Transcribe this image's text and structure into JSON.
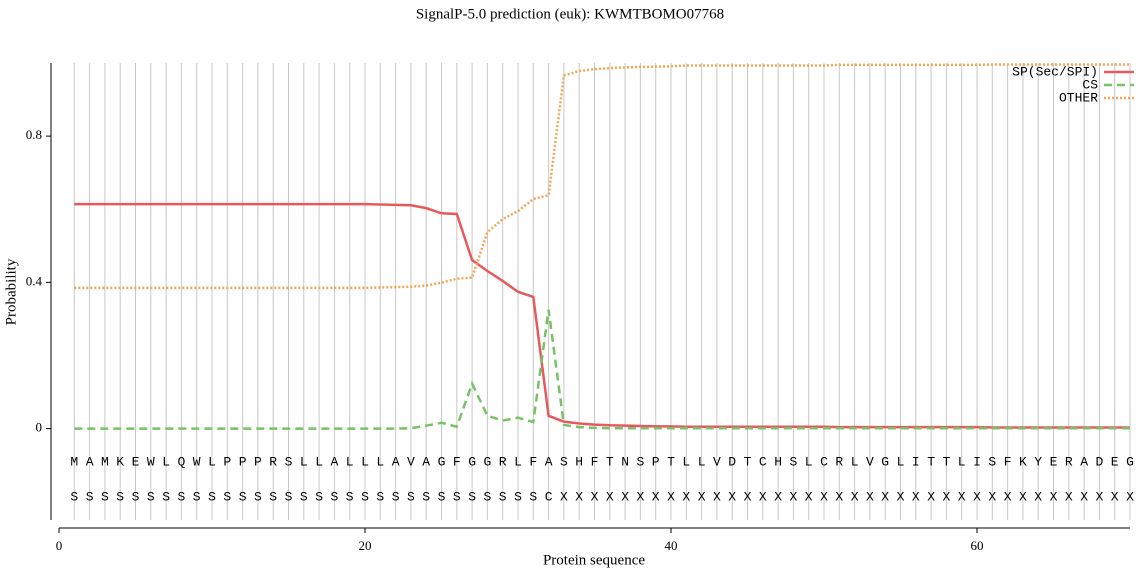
{
  "chart_data": {
    "type": "line",
    "title": "SignalP-5.0 prediction (euk):  KWMTBOMO07768",
    "x_label": "Protein sequence",
    "y_label": "Probability",
    "xlim": [
      0,
      70
    ],
    "xticks": [
      0,
      20,
      40,
      60
    ],
    "ylim": [
      -0.25,
      1.0
    ],
    "yticks": [
      0,
      0.4,
      0.8
    ],
    "grid": true,
    "legend": "upper right",
    "x": [
      1,
      2,
      3,
      4,
      5,
      6,
      7,
      8,
      9,
      10,
      11,
      12,
      13,
      14,
      15,
      16,
      17,
      18,
      19,
      20,
      21,
      22,
      23,
      24,
      25,
      26,
      27,
      28,
      29,
      30,
      31,
      32,
      33,
      34,
      35,
      36,
      37,
      38,
      39,
      40,
      41,
      42,
      43,
      44,
      45,
      46,
      47,
      48,
      49,
      50,
      51,
      52,
      53,
      54,
      55,
      56,
      57,
      58,
      59,
      60,
      61,
      62,
      63,
      64,
      65,
      66,
      67,
      68,
      69,
      70
    ],
    "sequence": [
      "M",
      "A",
      "M",
      "K",
      "E",
      "W",
      "L",
      "Q",
      "W",
      "L",
      "P",
      "P",
      "P",
      "R",
      "S",
      "L",
      "L",
      "A",
      "L",
      "L",
      "L",
      "A",
      "V",
      "A",
      "G",
      "F",
      "G",
      "G",
      "R",
      "L",
      "F",
      "A",
      "S",
      "H",
      "F",
      "T",
      "N",
      "S",
      "P",
      "T",
      "L",
      "L",
      "V",
      "D",
      "T",
      "C",
      "H",
      "S",
      "L",
      "C",
      "R",
      "L",
      "V",
      "G",
      "L",
      "I",
      "T",
      "T",
      "L",
      "I",
      "S",
      "F",
      "K",
      "Y",
      "E",
      "R",
      "A",
      "D",
      "E",
      "G"
    ],
    "labels": [
      "S",
      "S",
      "S",
      "S",
      "S",
      "S",
      "S",
      "S",
      "S",
      "S",
      "S",
      "S",
      "S",
      "S",
      "S",
      "S",
      "S",
      "S",
      "S",
      "S",
      "S",
      "S",
      "S",
      "S",
      "S",
      "S",
      "S",
      "S",
      "S",
      "S",
      "S",
      "C",
      "X",
      "X",
      "X",
      "X",
      "X",
      "X",
      "X",
      "X",
      "X",
      "X",
      "X",
      "X",
      "X",
      "X",
      "X",
      "X",
      "X",
      "X",
      "X",
      "X",
      "X",
      "X",
      "X",
      "X",
      "X",
      "X",
      "X",
      "X",
      "X",
      "X",
      "X",
      "X",
      "X",
      "X",
      "X",
      "X",
      "X",
      "X"
    ],
    "series": [
      {
        "name": "SP(Sec/SPI)",
        "color": "#e65a5e",
        "dash": "solid",
        "values": [
          0.614,
          0.614,
          0.614,
          0.614,
          0.614,
          0.614,
          0.614,
          0.614,
          0.614,
          0.614,
          0.614,
          0.614,
          0.614,
          0.614,
          0.614,
          0.614,
          0.614,
          0.614,
          0.614,
          0.614,
          0.613,
          0.612,
          0.611,
          0.603,
          0.589,
          0.587,
          0.461,
          0.431,
          0.404,
          0.374,
          0.36,
          0.035,
          0.019,
          0.014,
          0.011,
          0.009,
          0.008,
          0.007,
          0.006,
          0.006,
          0.005,
          0.005,
          0.005,
          0.005,
          0.005,
          0.005,
          0.005,
          0.005,
          0.005,
          0.005,
          0.004,
          0.004,
          0.004,
          0.004,
          0.004,
          0.004,
          0.004,
          0.004,
          0.004,
          0.004,
          0.003,
          0.003,
          0.003,
          0.003,
          0.003,
          0.003,
          0.003,
          0.003,
          0.003,
          0.003
        ]
      },
      {
        "name": "CS",
        "color": "#77c166",
        "dash": "dashed",
        "values": [
          0,
          0,
          0,
          0,
          0,
          0,
          0,
          0,
          0,
          0,
          0,
          0,
          0,
          0,
          0,
          0,
          0,
          0,
          0,
          0,
          0,
          0,
          0.001,
          0.008,
          0.016,
          0.005,
          0.123,
          0.035,
          0.022,
          0.03,
          0.018,
          0.325,
          0.01,
          0.004,
          0.002,
          0.001,
          0.001,
          0.001,
          0.001,
          0.001,
          0.001,
          0.001,
          0.001,
          0.001,
          0.001,
          0.001,
          0.001,
          0.001,
          0.001,
          0.001,
          0.001,
          0.001,
          0.001,
          0.001,
          0.001,
          0.001,
          0.001,
          0.001,
          0.001,
          0.001,
          0.001,
          0.001,
          0.001,
          0.001,
          0.001,
          0.001,
          0.001,
          0.001,
          0.001,
          0.001
        ]
      },
      {
        "name": "OTHER",
        "color": "#f5a455",
        "dash": "dotted",
        "values": [
          0.385,
          0.385,
          0.385,
          0.385,
          0.385,
          0.385,
          0.385,
          0.385,
          0.385,
          0.385,
          0.385,
          0.385,
          0.385,
          0.385,
          0.385,
          0.385,
          0.385,
          0.385,
          0.385,
          0.385,
          0.386,
          0.387,
          0.388,
          0.391,
          0.399,
          0.41,
          0.413,
          0.537,
          0.573,
          0.595,
          0.628,
          0.638,
          0.966,
          0.978,
          0.983,
          0.986,
          0.988,
          0.989,
          0.99,
          0.991,
          0.993,
          0.993,
          0.993,
          0.993,
          0.993,
          0.993,
          0.993,
          0.993,
          0.993,
          0.993,
          0.995,
          0.995,
          0.995,
          0.995,
          0.995,
          0.995,
          0.995,
          0.995,
          0.995,
          0.995,
          0.996,
          0.996,
          0.996,
          0.996,
          0.996,
          0.996,
          0.996,
          0.996,
          0.996,
          0.996
        ]
      }
    ]
  }
}
